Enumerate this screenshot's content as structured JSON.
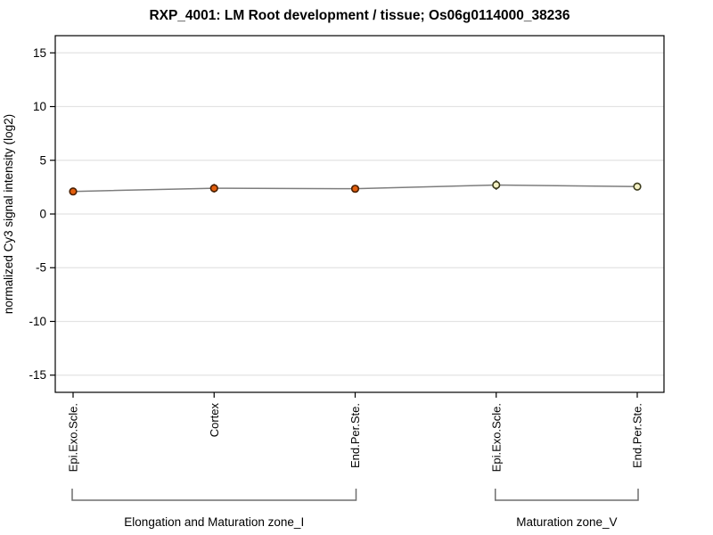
{
  "title": "RXP_4001: LM Root development / tissue; Os06g0114000_38236",
  "chart_data": {
    "type": "line",
    "title": "RXP_4001: LM Root development / tissue; Os06g0114000_38236",
    "xlabel": "",
    "ylabel": "normalized Cy3 signal intensity (log2)",
    "ylim": [
      -16.6,
      16.6
    ],
    "yticks": [
      15,
      10,
      5,
      0,
      -5,
      -10,
      -15
    ],
    "grid": "horizontal",
    "legend": "none",
    "categories": [
      "Epi.Exo.Scle.",
      "Cortex",
      "End.Per.Ste.",
      "Epi.Exo.Scle.",
      "End.Per.Ste."
    ],
    "series": [
      {
        "name": "normalized Cy3 signal intensity (log2)",
        "values": [
          2.1,
          2.4,
          2.35,
          2.7,
          2.55
        ],
        "errors": [
          0,
          0.4,
          0,
          0.45,
          0
        ]
      }
    ],
    "point_styles": [
      {
        "fill": "#e25e0d",
        "stroke": "#4a1f00"
      },
      {
        "fill": "#e25e0d",
        "stroke": "#4a1f00"
      },
      {
        "fill": "#e25e0d",
        "stroke": "#4a1f00"
      },
      {
        "fill": "#f4f1c4",
        "stroke": "#3c3c1e"
      },
      {
        "fill": "#f4f1c4",
        "stroke": "#3c3c1e"
      }
    ],
    "groups": [
      {
        "label": "Elongation and Maturation zone_I",
        "start": 0,
        "end": 2
      },
      {
        "label": "Maturation zone_V",
        "start": 3,
        "end": 4
      }
    ]
  },
  "colors": {
    "background": "#ffffff",
    "frame": "#000000",
    "gridline": "#e3e3e3",
    "trend_line": "#7d7d7d",
    "error_bar": "#333333",
    "bracket": "#6f6f6f",
    "text": "#000000"
  }
}
